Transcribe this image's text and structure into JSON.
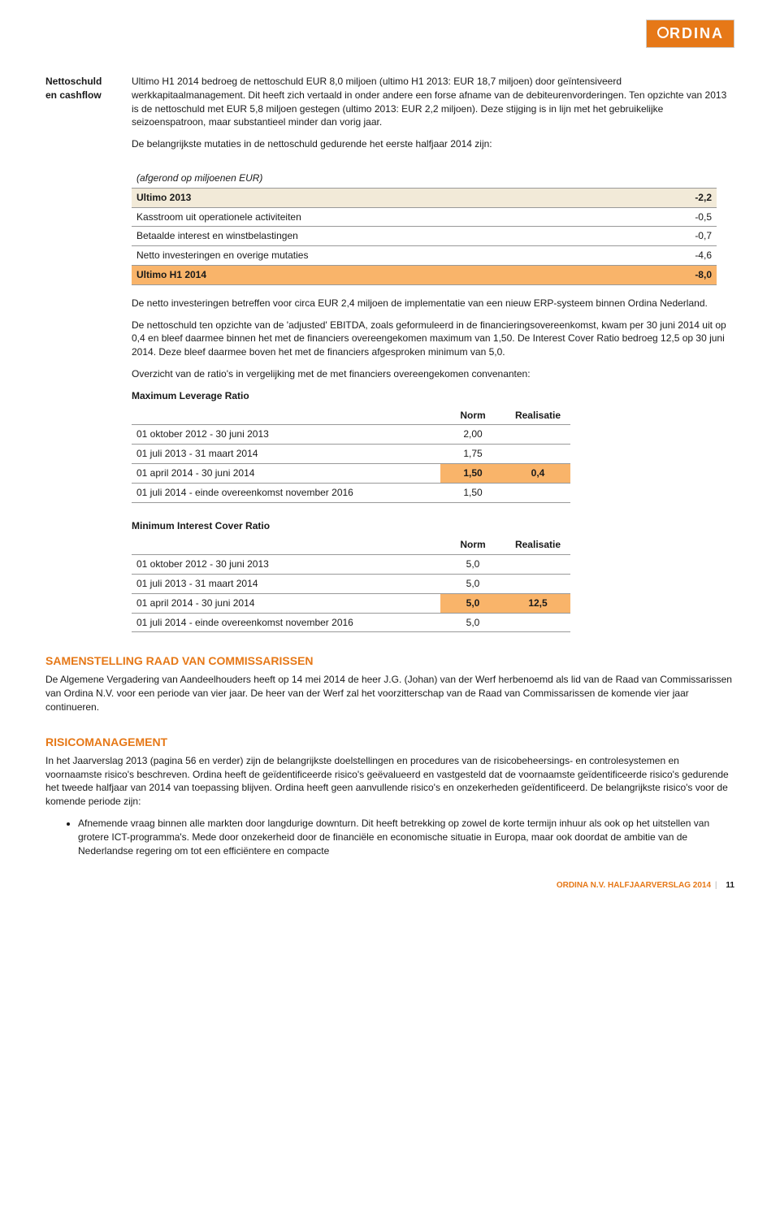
{
  "brand": {
    "name": "ORDINA",
    "bg": "#e67817",
    "fg": "#ffffff"
  },
  "sidebar": {
    "label_line1": "Nettoschuld",
    "label_line2": "en cashflow"
  },
  "intro": {
    "p1": "Ultimo H1 2014 bedroeg de nettoschuld EUR 8,0 miljoen (ultimo H1 2013: EUR 18,7 miljoen) door geïntensiveerd werkkapitaalmanagement. Dit heeft zich vertaald in onder andere een forse afname van de debiteurenvorderingen. Ten opzichte van 2013 is de nettoschuld met EUR 5,8 miljoen gestegen (ultimo 2013: EUR 2,2 miljoen). Deze stijging is in lijn met het gebruikelijke seizoenspatroon, maar substantieel minder dan vorig jaar.",
    "p2": "De belangrijkste mutaties in de nettoschuld gedurende het eerste halfjaar 2014 zijn:"
  },
  "mutations": {
    "caption": "(afgerond op miljoenen EUR)",
    "rows": [
      {
        "label": "Ultimo 2013",
        "value": "-2,2",
        "cls": "beige bold"
      },
      {
        "label": "Kasstroom uit operationele activiteiten",
        "value": "-0,5",
        "cls": ""
      },
      {
        "label": "Betaalde interest en winstbelastingen",
        "value": "-0,7",
        "cls": ""
      },
      {
        "label": "Netto investeringen en overige mutaties",
        "value": "-4,6",
        "cls": ""
      },
      {
        "label": "Ultimo H1 2014",
        "value": "-8,0",
        "cls": "orange-row bold"
      }
    ]
  },
  "after_mutations": {
    "p1": "De netto investeringen betreffen voor circa EUR 2,4 miljoen de implementatie van een nieuw ERP-systeem binnen Ordina Nederland.",
    "p2": "De nettoschuld ten opzichte van de 'adjusted' EBITDA, zoals geformuleerd in de financieringsovereenkomst, kwam per 30 juni 2014 uit op 0,4 en bleef daarmee binnen het met de financiers overeengekomen maximum van 1,50. De Interest Cover Ratio bedroeg 12,5 op 30 juni 2014. Deze bleef daarmee boven het met de financiers afgesproken minimum van 5,0.",
    "p3": "Overzicht van de ratio's in vergelijking met de met financiers overeengekomen convenanten:"
  },
  "leverage": {
    "title": "Maximum Leverage Ratio",
    "head_norm": "Norm",
    "head_real": "Realisatie",
    "rows": [
      {
        "label": "01 oktober 2012 - 30 juni 2013",
        "norm": "2,00",
        "real": "",
        "hl": false
      },
      {
        "label": "01 juli 2013 - 31 maart 2014",
        "norm": "1,75",
        "real": "",
        "hl": false
      },
      {
        "label": "01 april 2014 - 30 juni 2014",
        "norm": "1,50",
        "real": "0,4",
        "hl": true
      },
      {
        "label": "01 juli 2014 - einde overeenkomst november 2016",
        "norm": "1,50",
        "real": "",
        "hl": false
      }
    ]
  },
  "icr": {
    "title": "Minimum Interest Cover Ratio",
    "head_norm": "Norm",
    "head_real": "Realisatie",
    "rows": [
      {
        "label": "01 oktober 2012 - 30 juni 2013",
        "norm": "5,0",
        "real": "",
        "hl": false
      },
      {
        "label": "01 juli 2013 - 31 maart 2014",
        "norm": "5,0",
        "real": "",
        "hl": false
      },
      {
        "label": "01 april 2014 - 30 juni 2014",
        "norm": "5,0",
        "real": "12,5",
        "hl": true
      },
      {
        "label": "01 juli 2014 - einde overeenkomst november 2016",
        "norm": "5,0",
        "real": "",
        "hl": false
      }
    ]
  },
  "rvc": {
    "heading": "SAMENSTELLING RAAD VAN COMMISSARISSEN",
    "text": "De Algemene Vergadering van Aandeelhouders heeft op 14 mei 2014 de heer J.G. (Johan) van der Werf herbenoemd als lid van de Raad van Commissarissen van Ordina N.V. voor een periode van vier jaar. De heer van der Werf zal het voorzitterschap van de Raad van Commissarissen de komende vier jaar continueren."
  },
  "risk": {
    "heading": "RISICOMANAGEMENT",
    "text": "In het Jaarverslag 2013 (pagina 56 en verder) zijn de belangrijkste doelstellingen en procedures van de risicobeheersings- en controlesystemen en voornaamste risico's beschreven. Ordina heeft de geïdentificeerde risico's geëvalueerd en vastgesteld dat de voornaamste geïdentificeerde risico's gedurende het tweede halfjaar van 2014 van toepassing blijven. Ordina heeft geen aanvullende risico's en onzekerheden geïdentificeerd. De belangrijkste risico's voor de komende periode zijn:",
    "bullet": "Afnemende vraag binnen alle markten door langdurige downturn. Dit heeft betrekking op zowel de korte termijn inhuur als ook op het uitstellen van grotere ICT-programma's. Mede door onzekerheid door de financiële en economische situatie in Europa, maar ook doordat de ambitie van de Nederlandse regering om tot een efficiëntere en compacte"
  },
  "footer": {
    "text": "ORDINA N.V. HALFJAARVERSLAG 2014",
    "page": "11"
  }
}
